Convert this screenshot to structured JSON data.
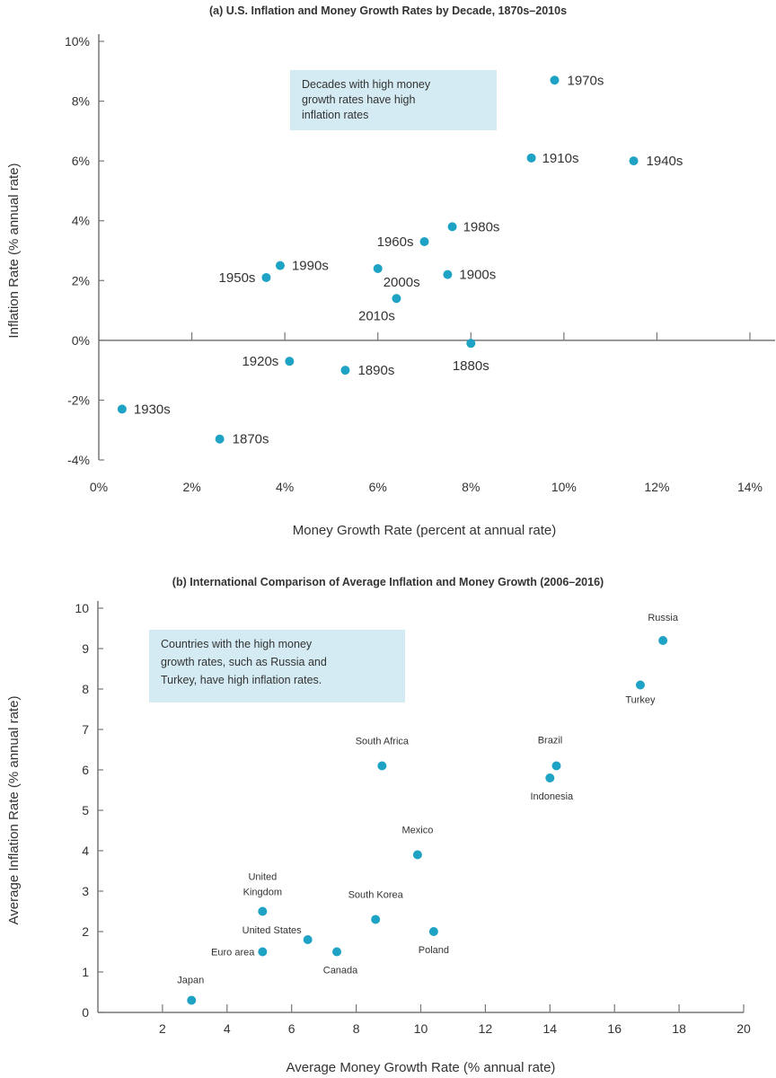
{
  "colors": {
    "point": "#1ea3c5",
    "annotation_bg": "#d4ebf3",
    "axis": "#777777",
    "text": "#333333"
  },
  "chart_data": [
    {
      "type": "scatter",
      "title": "(a) U.S. Inflation and Money Growth Rates by Decade, 1870s–2010s",
      "xlabel": "Money Growth Rate (percent at annual rate)",
      "ylabel": "Inflation Rate (% annual rate)",
      "xlim": [
        0,
        14
      ],
      "ylim": [
        -4,
        10
      ],
      "xticks": [
        "0%",
        "2%",
        "4%",
        "6%",
        "8%",
        "10%",
        "12%",
        "14%"
      ],
      "yticks": [
        "-4%",
        "-2%",
        "0%",
        "2%",
        "4%",
        "6%",
        "8%",
        "10%"
      ],
      "grid": false,
      "annotation": [
        "Decades with high money",
        "growth rates have high",
        "inflation rates"
      ],
      "points": [
        {
          "label": "1870s",
          "x": 2.6,
          "y": -3.3
        },
        {
          "label": "1880s",
          "x": 8.0,
          "y": -0.1
        },
        {
          "label": "1890s",
          "x": 5.3,
          "y": -1.0
        },
        {
          "label": "1900s",
          "x": 7.5,
          "y": 2.2
        },
        {
          "label": "1910s",
          "x": 9.3,
          "y": 6.1
        },
        {
          "label": "1920s",
          "x": 4.1,
          "y": -0.7
        },
        {
          "label": "1930s",
          "x": 0.5,
          "y": -2.3
        },
        {
          "label": "1940s",
          "x": 11.5,
          "y": 6.0
        },
        {
          "label": "1950s",
          "x": 3.6,
          "y": 2.1
        },
        {
          "label": "1960s",
          "x": 7.0,
          "y": 3.3
        },
        {
          "label": "1970s",
          "x": 9.8,
          "y": 8.7
        },
        {
          "label": "1980s",
          "x": 7.6,
          "y": 3.8
        },
        {
          "label": "1990s",
          "x": 3.9,
          "y": 2.5
        },
        {
          "label": "2000s",
          "x": 6.0,
          "y": 2.4
        },
        {
          "label": "2010s",
          "x": 6.4,
          "y": 1.4
        }
      ]
    },
    {
      "type": "scatter",
      "title": "(b) International Comparison of Average Inflation and Money Growth (2006–2016)",
      "xlabel": "Average Money Growth Rate (% annual rate)",
      "ylabel": "Average Inflation Rate (% annual rate)",
      "xlim": [
        0,
        20
      ],
      "ylim": [
        0,
        10
      ],
      "xticks": [
        "2",
        "4",
        "6",
        "8",
        "10",
        "12",
        "14",
        "16",
        "18",
        "20"
      ],
      "yticks": [
        "0",
        "1",
        "2",
        "3",
        "4",
        "5",
        "6",
        "7",
        "8",
        "9",
        "10"
      ],
      "grid": false,
      "annotation": [
        "Countries with the high money",
        "growth rates, such as Russia and",
        "Turkey, have high inflation rates."
      ],
      "points": [
        {
          "label": "Russia",
          "x": 17.5,
          "y": 9.2
        },
        {
          "label": "Turkey",
          "x": 16.8,
          "y": 8.1
        },
        {
          "label": "South Africa",
          "x": 8.8,
          "y": 6.1
        },
        {
          "label": "Brazil",
          "x": 14.2,
          "y": 6.1
        },
        {
          "label": "Indonesia",
          "x": 14.0,
          "y": 5.8
        },
        {
          "label": "Mexico",
          "x": 9.9,
          "y": 3.9
        },
        {
          "label": "United Kingdom",
          "x": 5.1,
          "y": 2.5
        },
        {
          "label": "South Korea",
          "x": 8.6,
          "y": 2.3
        },
        {
          "label": "Poland",
          "x": 10.4,
          "y": 2.0
        },
        {
          "label": "United States",
          "x": 6.5,
          "y": 1.8
        },
        {
          "label": "Canada",
          "x": 7.4,
          "y": 1.5
        },
        {
          "label": "Euro area",
          "x": 5.1,
          "y": 1.5
        },
        {
          "label": "Japan",
          "x": 2.9,
          "y": 0.3
        }
      ]
    }
  ]
}
